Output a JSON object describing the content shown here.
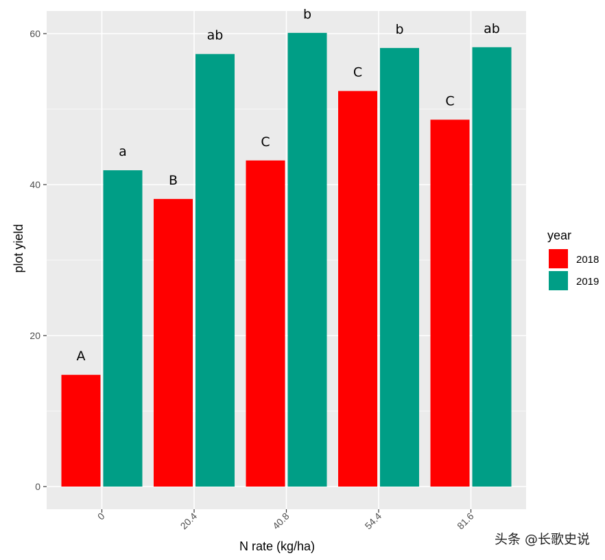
{
  "chart_data": {
    "type": "bar",
    "title": "",
    "xlabel": "N rate (kg/ha)",
    "ylabel": "plot yield",
    "categories": [
      "0",
      "20.4",
      "40.8",
      "54.4",
      "81.6"
    ],
    "ylim": [
      -3,
      63
    ],
    "yticks": [
      0,
      20,
      40,
      60
    ],
    "grid": true,
    "legend": {
      "title": "year",
      "position": "right"
    },
    "series": [
      {
        "name": "2018",
        "color": "#ff0000",
        "values": [
          14.8,
          38.1,
          43.2,
          52.4,
          48.6
        ],
        "labels": [
          "A",
          "B",
          "C",
          "C",
          "C"
        ]
      },
      {
        "name": "2019",
        "color": "#009e86",
        "values": [
          41.9,
          57.3,
          60.1,
          58.1,
          58.2
        ],
        "labels": [
          "a",
          "ab",
          "b",
          "b",
          "ab"
        ]
      }
    ]
  },
  "watermark": "头条 @长歌史说"
}
